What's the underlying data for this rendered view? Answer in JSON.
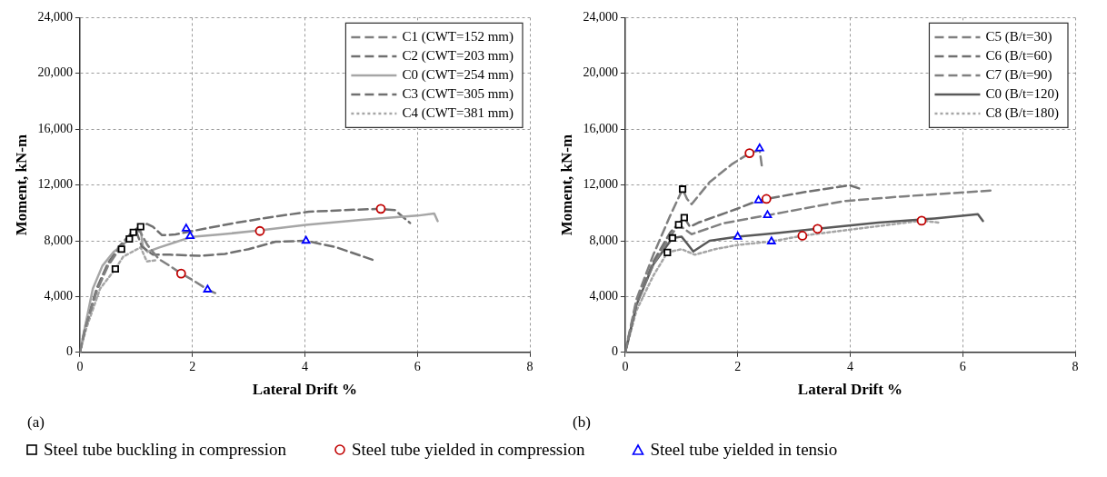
{
  "chart_data": [
    {
      "type": "line",
      "xlabel": "Lateral Drift %",
      "ylabel": "Moment, kN-m",
      "xlim": [
        0,
        8
      ],
      "xticks": [
        0,
        2,
        4,
        6,
        8
      ],
      "ylim": [
        0,
        24000
      ],
      "yticks": [
        0,
        {
          "value": 4000,
          "label": "4,000"
        },
        {
          "value": 8000,
          "label": "8,000"
        },
        {
          "value": 12000,
          "label": "12,000"
        },
        {
          "value": 16000,
          "label": "16,000"
        },
        {
          "value": 20000,
          "label": "20,000"
        },
        {
          "value": 24000,
          "label": "24,000"
        }
      ],
      "grid": true,
      "legend": "top right",
      "annotations": [
        "(a)",
        "Steel tube buckling in compression",
        "Steel tube yielded in compression",
        "Steel tube yielded in tensio"
      ],
      "series": [
        {
          "name": "C1 (CWT=152 mm)",
          "color": "#808080",
          "line_style": "dashed",
          "x": [
            0,
            0.1,
            0.3,
            0.5,
            0.7,
            0.9,
            1.05,
            1.2,
            1.4,
            1.6,
            1.8,
            2.0,
            2.27,
            2.45
          ],
          "values": [
            0,
            1800,
            4400,
            6200,
            7400,
            8300,
            8800,
            7700,
            6700,
            6200,
            5650,
            5200,
            4500,
            4170
          ]
        },
        {
          "name": "C2 (CWT=203 mm)",
          "color": "#707070",
          "line_style": "dashed",
          "x": [
            0,
            0.1,
            0.3,
            0.5,
            0.7,
            0.9,
            1.0,
            1.1,
            1.3,
            1.6,
            2.16,
            2.58,
            3.0,
            3.48,
            4.02,
            4.56,
            5.24
          ],
          "values": [
            0,
            1800,
            4500,
            6300,
            7500,
            8400,
            8700,
            7600,
            7000,
            7000,
            6920,
            7060,
            7400,
            7930,
            8000,
            7530,
            6590
          ]
        },
        {
          "name": "C0 (CWT=254 mm)",
          "color": "#a6a6a6",
          "line_style": "solid",
          "x": [
            0,
            0.1,
            0.23,
            0.4,
            0.6,
            0.77,
            0.95,
            1.08,
            1.12,
            1.2,
            1.4,
            1.7,
            1.98,
            2.5,
            3.17,
            4.02,
            5.0,
            6.0,
            6.3,
            6.36
          ],
          "values": [
            0,
            2000,
            4570,
            6200,
            7200,
            7730,
            8400,
            8800,
            7600,
            7200,
            7500,
            7900,
            8270,
            8450,
            8740,
            9140,
            9500,
            9800,
            9950,
            9410
          ]
        },
        {
          "name": "C3 (CWT=305 mm)",
          "color": "#707070",
          "line_style": "dashed",
          "x": [
            0,
            0.1,
            0.3,
            0.5,
            0.7,
            0.9,
            1.05,
            1.19,
            1.3,
            1.46,
            1.7,
            2.0,
            2.76,
            3.4,
            4.07,
            4.7,
            5.33,
            5.6,
            5.87
          ],
          "values": [
            0,
            1900,
            4600,
            6400,
            7600,
            8500,
            9000,
            9210,
            9000,
            8400,
            8450,
            8700,
            9280,
            9700,
            10080,
            10200,
            10290,
            10200,
            9280
          ]
        },
        {
          "name": "C4 (CWT=381 mm)",
          "color": "#a6a6a6",
          "line_style": "dotted",
          "x": [
            0,
            0.11,
            0.36,
            0.63,
            0.77,
            1.08,
            1.19,
            1.35
          ],
          "values": [
            0,
            1680,
            4570,
            5980,
            6860,
            7530,
            6520,
            6600
          ]
        },
        {
          "type": "scatter",
          "marker": "square",
          "color": "#000000",
          "x": [
            0.63,
            0.74,
            0.88,
            0.95,
            1.08
          ],
          "values": [
            5980,
            7400,
            8130,
            8600,
            9010
          ]
        },
        {
          "type": "scatter",
          "marker": "circle",
          "color": "#c00000",
          "x": [
            1.8,
            3.2,
            5.35
          ],
          "values": [
            5650,
            8700,
            10290
          ]
        },
        {
          "type": "scatter",
          "marker": "triangle",
          "color": "#0000ff",
          "x": [
            1.89,
            1.96,
            2.27,
            4.02
          ],
          "values": [
            8870,
            8340,
            4500,
            8000
          ]
        }
      ]
    },
    {
      "type": "line",
      "xlabel": "Lateral Drift %",
      "ylabel": "Moment, kN-m",
      "xlim": [
        0,
        8
      ],
      "xticks": [
        0,
        2,
        4,
        6,
        8
      ],
      "ylim": [
        0,
        24000
      ],
      "yticks": [
        0,
        {
          "value": 4000,
          "label": "4,000"
        },
        {
          "value": 8000,
          "label": "8,000"
        },
        {
          "value": 12000,
          "label": "12,000"
        },
        {
          "value": 16000,
          "label": "16,000"
        },
        {
          "value": 20000,
          "label": "20,000"
        },
        {
          "value": 24000,
          "label": "24,000"
        }
      ],
      "grid": true,
      "legend": "top right",
      "annotations": [
        "(b)"
      ],
      "series": [
        {
          "name": "C5 (B/t=30)",
          "color": "#808080",
          "line_style": "dashed",
          "x": [
            0,
            0.2,
            0.5,
            0.8,
            1.02,
            1.1,
            1.18,
            1.5,
            1.9,
            2.21,
            2.39,
            2.43
          ],
          "values": [
            0,
            3800,
            7000,
            9800,
            11700,
            11000,
            10620,
            12200,
            13500,
            14280,
            14500,
            13330
          ]
        },
        {
          "name": "C6 (B/t=60)",
          "color": "#707070",
          "line_style": "dashed",
          "x": [
            0,
            0.2,
            0.5,
            0.8,
            1.05,
            1.15,
            1.3,
            1.98,
            2.37,
            2.51,
            3.2,
            3.99,
            4.2
          ],
          "values": [
            0,
            3600,
            6500,
            8600,
            9660,
            9000,
            9300,
            10280,
            10890,
            11000,
            11500,
            11980,
            11700
          ]
        },
        {
          "name": "C7 (B/t=90)",
          "color": "#808080",
          "line_style": "dashed",
          "x": [
            0,
            0.2,
            0.5,
            0.8,
            0.95,
            1.18,
            1.75,
            2.53,
            3.88,
            5.0,
            6.5
          ],
          "values": [
            0,
            3500,
            6300,
            8300,
            9150,
            8470,
            9260,
            9830,
            10840,
            11200,
            11600
          ]
        },
        {
          "name": "C0 (B/t=120)",
          "color": "#595959",
          "line_style": "solid",
          "x": [
            0,
            0.2,
            0.5,
            0.84,
            1.0,
            1.1,
            1.21,
            1.5,
            2.0,
            2.7,
            3.42,
            4.5,
            5.5,
            6.27,
            6.36
          ],
          "values": [
            0,
            3400,
            6300,
            8200,
            8300,
            7800,
            7230,
            8000,
            8290,
            8550,
            8860,
            9300,
            9600,
            9900,
            9420
          ]
        },
        {
          "name": "C8 (B/t=180)",
          "color": "#a6a6a6",
          "line_style": "dotted",
          "x": [
            0,
            0.2,
            0.5,
            0.75,
            1.0,
            1.24,
            1.6,
            2.0,
            2.6,
            3.15,
            4.0,
            5.27,
            5.58
          ],
          "values": [
            0,
            3000,
            5500,
            7160,
            7400,
            7000,
            7400,
            7700,
            7950,
            8360,
            8800,
            9440,
            9300
          ]
        },
        {
          "type": "scatter",
          "marker": "square",
          "color": "#000000",
          "x": [
            0.75,
            0.84,
            0.95,
            1.05,
            1.02
          ],
          "values": [
            7160,
            8200,
            9150,
            9660,
            11700
          ]
        },
        {
          "type": "scatter",
          "marker": "circle",
          "color": "#c00000",
          "x": [
            2.21,
            2.51,
            3.15,
            3.42,
            5.27
          ],
          "values": [
            14280,
            11000,
            8360,
            8860,
            9440
          ]
        },
        {
          "type": "scatter",
          "marker": "triangle",
          "color": "#0000ff",
          "x": [
            2.0,
            2.37,
            2.39,
            2.53,
            2.6
          ],
          "values": [
            8290,
            10890,
            14620,
            9830,
            7950
          ]
        }
      ]
    }
  ]
}
